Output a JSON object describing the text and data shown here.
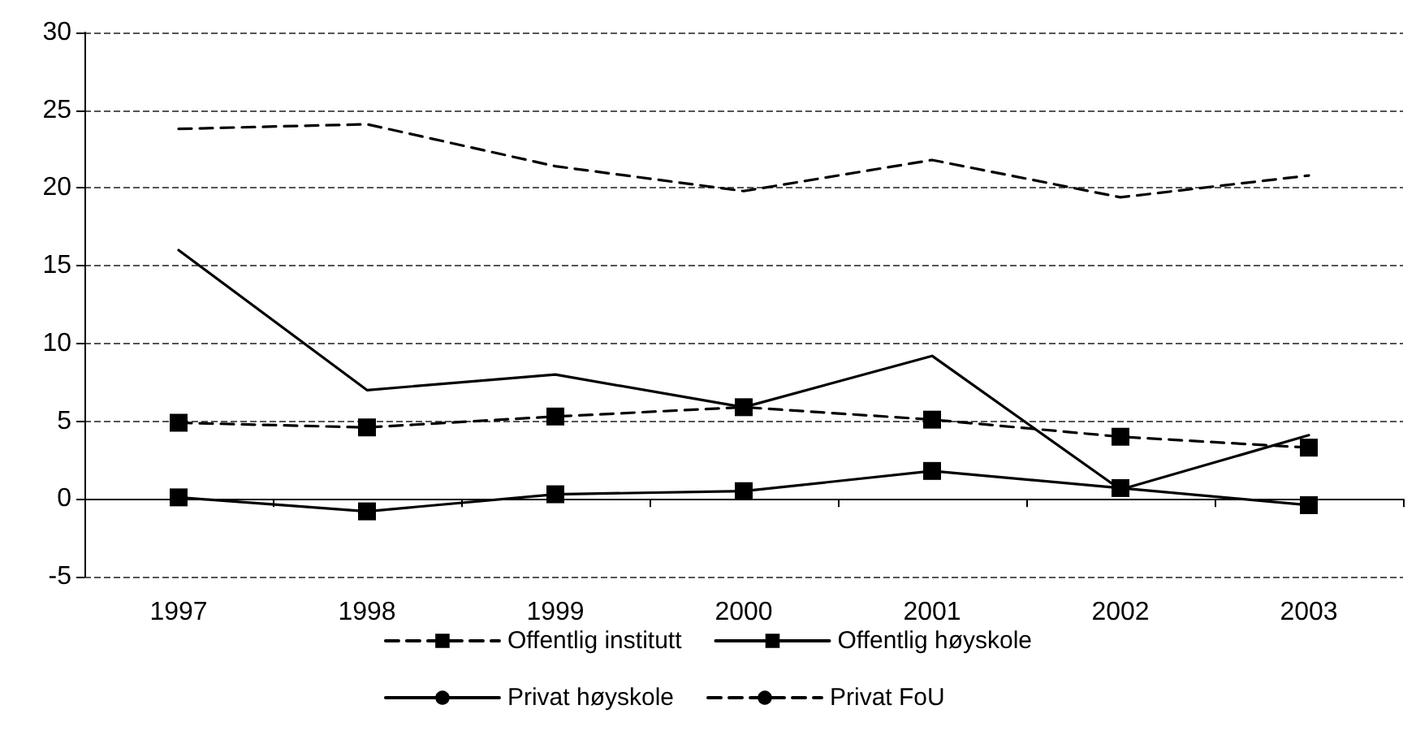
{
  "chart_data": {
    "type": "line",
    "categories": [
      "1997",
      "1998",
      "1999",
      "2000",
      "2001",
      "2002",
      "2003"
    ],
    "series": [
      {
        "name": "Offentlig institutt",
        "color": "#000000",
        "line_style": "dashed",
        "marker": "square",
        "values": [
          4.9,
          4.6,
          5.3,
          5.9,
          5.1,
          4.0,
          3.3
        ]
      },
      {
        "name": "Offentlig høyskole",
        "color": "#000000",
        "line_style": "solid",
        "marker": "square",
        "values": [
          0.1,
          -0.8,
          0.3,
          0.5,
          1.8,
          0.7,
          -0.4
        ]
      },
      {
        "name": "Privat høyskole",
        "color": "#000000",
        "line_style": "solid",
        "marker": "none",
        "values": [
          16.0,
          7.0,
          8.0,
          5.9,
          9.2,
          0.6,
          4.1
        ]
      },
      {
        "name": "Privat FoU",
        "color": "#000000",
        "line_style": "dashed",
        "marker": "none",
        "values": [
          23.8,
          24.1,
          21.4,
          19.8,
          21.8,
          19.4,
          20.8
        ]
      }
    ],
    "ylim": [
      -5,
      30
    ],
    "yticks": [
      -5,
      0,
      5,
      10,
      15,
      20,
      25,
      30
    ],
    "grid": "y",
    "legend": "bottom"
  }
}
